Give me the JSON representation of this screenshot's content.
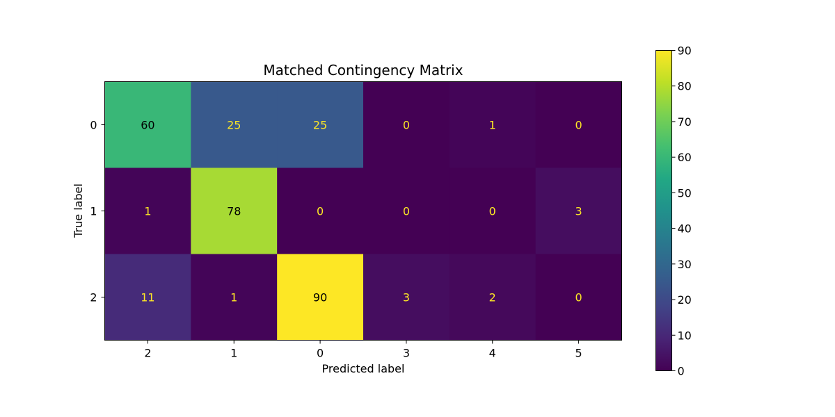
{
  "chart_data": {
    "type": "heatmap",
    "title": "Matched Contingency Matrix",
    "xlabel": "Predicted label",
    "ylabel": "True label",
    "x_categories": [
      "2",
      "1",
      "0",
      "3",
      "4",
      "5"
    ],
    "y_categories": [
      "0",
      "1",
      "2"
    ],
    "values": [
      [
        60,
        25,
        25,
        0,
        1,
        0
      ],
      [
        1,
        78,
        0,
        0,
        0,
        3
      ],
      [
        11,
        1,
        90,
        3,
        2,
        0
      ]
    ],
    "colormap": "viridis",
    "colorbar": {
      "range": [
        0,
        90
      ],
      "ticks": [
        "0",
        "10",
        "20",
        "30",
        "40",
        "50",
        "60",
        "70",
        "80",
        "90"
      ]
    },
    "text_colors": {
      "light": "#fde725",
      "dark": "#000000"
    },
    "grid": false
  }
}
